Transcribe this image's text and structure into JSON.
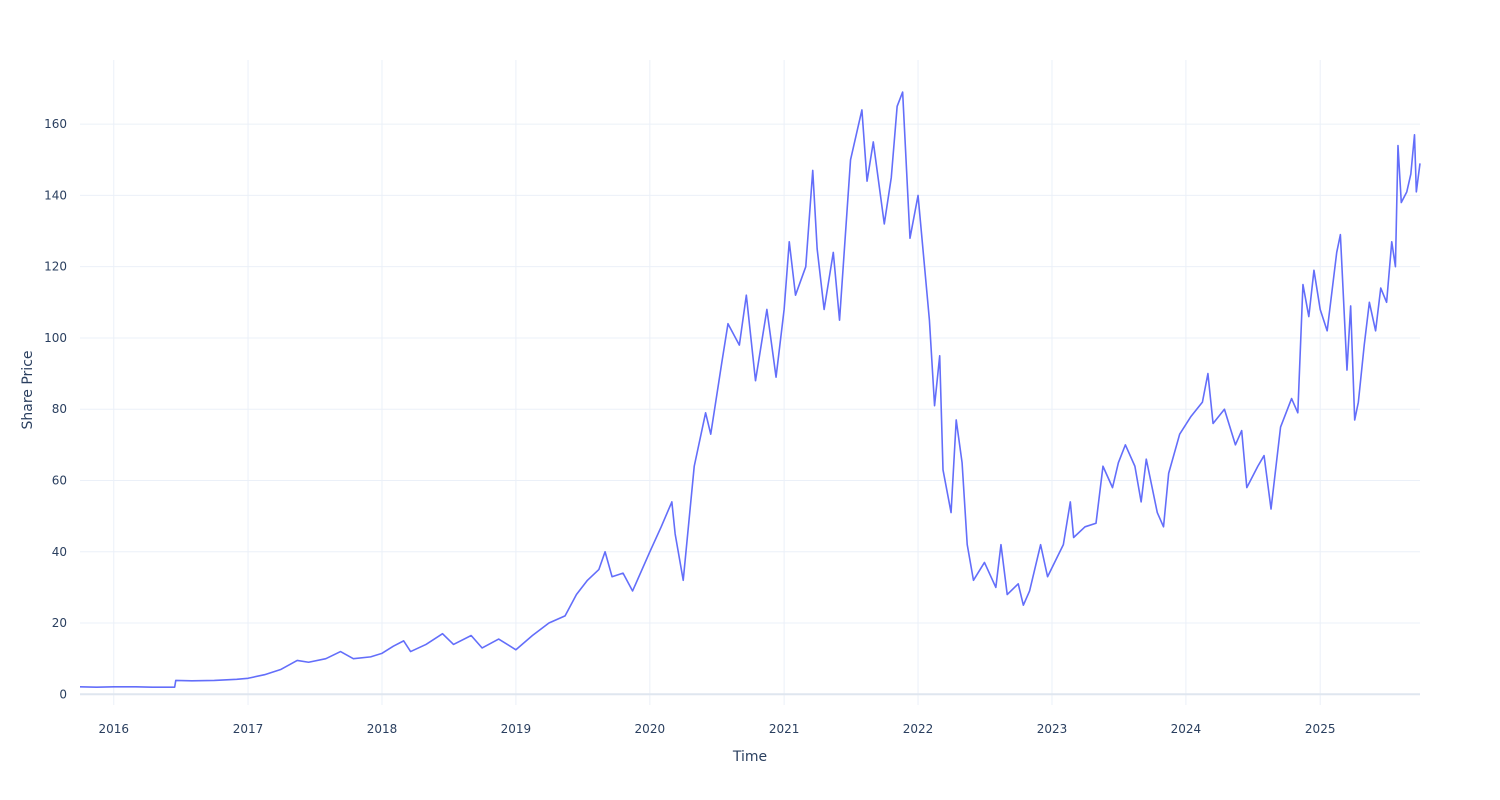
{
  "chart_data": {
    "type": "line",
    "title": "",
    "xlabel": "Time",
    "ylabel": "Share Price",
    "xlim": [
      "2015-10-01",
      "2025-09-30"
    ],
    "ylim": [
      -3,
      178
    ],
    "grid": true,
    "legend": "none",
    "line_color": "#636efa",
    "grid_color": "#ebf0f8",
    "text_color": "#2a3f5f",
    "x_ticks": [
      {
        "value": "2016-01-01",
        "label": "2016"
      },
      {
        "value": "2017-01-01",
        "label": "2017"
      },
      {
        "value": "2018-01-01",
        "label": "2018"
      },
      {
        "value": "2019-01-01",
        "label": "2019"
      },
      {
        "value": "2020-01-01",
        "label": "2020"
      },
      {
        "value": "2021-01-01",
        "label": "2021"
      },
      {
        "value": "2022-01-01",
        "label": "2022"
      },
      {
        "value": "2023-01-01",
        "label": "2023"
      },
      {
        "value": "2024-01-01",
        "label": "2024"
      },
      {
        "value": "2025-01-01",
        "label": "2025"
      }
    ],
    "y_ticks": [
      {
        "value": 0,
        "label": "0"
      },
      {
        "value": 20,
        "label": "20"
      },
      {
        "value": 40,
        "label": "40"
      },
      {
        "value": 60,
        "label": "60"
      },
      {
        "value": 80,
        "label": "80"
      },
      {
        "value": 100,
        "label": "100"
      },
      {
        "value": 120,
        "label": "120"
      },
      {
        "value": 140,
        "label": "140"
      },
      {
        "value": 160,
        "label": "160"
      }
    ],
    "series": [
      {
        "points": [
          [
            "2015-10-01",
            2.1
          ],
          [
            "2015-11-15",
            2.0
          ],
          [
            "2016-01-01",
            2.1
          ],
          [
            "2016-03-01",
            2.1
          ],
          [
            "2016-04-15",
            2.0
          ],
          [
            "2016-06-15",
            2.0
          ],
          [
            "2016-06-18",
            3.9
          ],
          [
            "2016-08-01",
            3.8
          ],
          [
            "2016-10-01",
            3.9
          ],
          [
            "2016-12-01",
            4.2
          ],
          [
            "2017-01-01",
            4.5
          ],
          [
            "2017-02-15",
            5.5
          ],
          [
            "2017-04-01",
            7.0
          ],
          [
            "2017-05-15",
            9.5
          ],
          [
            "2017-06-15",
            9.0
          ],
          [
            "2017-08-01",
            10.0
          ],
          [
            "2017-09-10",
            12.0
          ],
          [
            "2017-10-15",
            10.0
          ],
          [
            "2017-12-01",
            10.5
          ],
          [
            "2018-01-01",
            11.5
          ],
          [
            "2018-02-01",
            13.5
          ],
          [
            "2018-03-01",
            15.0
          ],
          [
            "2018-03-20",
            12.0
          ],
          [
            "2018-05-01",
            14.0
          ],
          [
            "2018-06-15",
            17.0
          ],
          [
            "2018-07-15",
            14.0
          ],
          [
            "2018-09-01",
            16.5
          ],
          [
            "2018-10-01",
            13.0
          ],
          [
            "2018-11-15",
            15.5
          ],
          [
            "2019-01-01",
            12.5
          ],
          [
            "2019-02-15",
            16.5
          ],
          [
            "2019-04-01",
            20.0
          ],
          [
            "2019-05-15",
            22.0
          ],
          [
            "2019-06-15",
            28.0
          ],
          [
            "2019-07-15",
            32.0
          ],
          [
            "2019-08-15",
            35.0
          ],
          [
            "2019-09-01",
            40.0
          ],
          [
            "2019-09-20",
            33.0
          ],
          [
            "2019-10-20",
            34.0
          ],
          [
            "2019-11-15",
            29.0
          ],
          [
            "2020-01-01",
            40.0
          ],
          [
            "2020-02-01",
            47.0
          ],
          [
            "2020-03-01",
            54.0
          ],
          [
            "2020-03-10",
            45.0
          ],
          [
            "2020-04-01",
            32.0
          ],
          [
            "2020-05-01",
            64.0
          ],
          [
            "2020-06-01",
            79.0
          ],
          [
            "2020-06-15",
            73.0
          ],
          [
            "2020-07-15",
            93.0
          ],
          [
            "2020-08-01",
            104.0
          ],
          [
            "2020-09-01",
            98.0
          ],
          [
            "2020-09-20",
            112.0
          ],
          [
            "2020-10-15",
            88.0
          ],
          [
            "2020-11-15",
            108.0
          ],
          [
            "2020-12-10",
            89.0
          ],
          [
            "2021-01-01",
            108.0
          ],
          [
            "2021-01-15",
            127.0
          ],
          [
            "2021-02-01",
            112.0
          ],
          [
            "2021-03-01",
            120.0
          ],
          [
            "2021-03-20",
            147.0
          ],
          [
            "2021-04-01",
            125.0
          ],
          [
            "2021-04-20",
            108.0
          ],
          [
            "2021-05-15",
            124.0
          ],
          [
            "2021-06-01",
            105.0
          ],
          [
            "2021-07-01",
            150.0
          ],
          [
            "2021-08-01",
            164.0
          ],
          [
            "2021-08-15",
            144.0
          ],
          [
            "2021-09-01",
            155.0
          ],
          [
            "2021-10-01",
            132.0
          ],
          [
            "2021-10-20",
            145.0
          ],
          [
            "2021-11-05",
            165.0
          ],
          [
            "2021-11-20",
            169.0
          ],
          [
            "2021-12-10",
            128.0
          ],
          [
            "2022-01-01",
            140.0
          ],
          [
            "2022-02-01",
            105.0
          ],
          [
            "2022-02-15",
            81.0
          ],
          [
            "2022-03-01",
            95.0
          ],
          [
            "2022-03-10",
            63.0
          ],
          [
            "2022-04-01",
            51.0
          ],
          [
            "2022-04-15",
            77.0
          ],
          [
            "2022-05-01",
            65.0
          ],
          [
            "2022-05-15",
            42.0
          ],
          [
            "2022-06-01",
            32.0
          ],
          [
            "2022-07-01",
            37.0
          ],
          [
            "2022-08-01",
            30.0
          ],
          [
            "2022-08-15",
            42.0
          ],
          [
            "2022-09-01",
            28.0
          ],
          [
            "2022-10-01",
            31.0
          ],
          [
            "2022-10-15",
            25.0
          ],
          [
            "2022-11-01",
            29.0
          ],
          [
            "2022-12-01",
            42.0
          ],
          [
            "2022-12-20",
            33.0
          ],
          [
            "2023-02-01",
            42.0
          ],
          [
            "2023-02-20",
            54.0
          ],
          [
            "2023-03-01",
            44.0
          ],
          [
            "2023-04-01",
            47.0
          ],
          [
            "2023-05-01",
            48.0
          ],
          [
            "2023-05-20",
            64.0
          ],
          [
            "2023-06-15",
            58.0
          ],
          [
            "2023-07-01",
            65.0
          ],
          [
            "2023-07-20",
            70.0
          ],
          [
            "2023-08-15",
            64.0
          ],
          [
            "2023-09-01",
            54.0
          ],
          [
            "2023-09-15",
            66.0
          ],
          [
            "2023-10-15",
            51.0
          ],
          [
            "2023-11-01",
            47.0
          ],
          [
            "2023-11-15",
            62.0
          ],
          [
            "2023-12-15",
            73.0
          ],
          [
            "2024-01-15",
            78.0
          ],
          [
            "2024-02-15",
            82.0
          ],
          [
            "2024-03-01",
            90.0
          ],
          [
            "2024-03-15",
            76.0
          ],
          [
            "2024-04-15",
            80.0
          ],
          [
            "2024-05-15",
            70.0
          ],
          [
            "2024-06-01",
            74.0
          ],
          [
            "2024-06-15",
            58.0
          ],
          [
            "2024-07-15",
            64.0
          ],
          [
            "2024-08-01",
            67.0
          ],
          [
            "2024-08-20",
            52.0
          ],
          [
            "2024-09-15",
            75.0
          ],
          [
            "2024-10-15",
            83.0
          ],
          [
            "2024-11-01",
            79.0
          ],
          [
            "2024-11-15",
            115.0
          ],
          [
            "2024-12-01",
            106.0
          ],
          [
            "2024-12-15",
            119.0
          ],
          [
            "2025-01-01",
            108.0
          ],
          [
            "2025-01-20",
            102.0
          ],
          [
            "2025-02-15",
            124.0
          ],
          [
            "2025-02-25",
            129.0
          ],
          [
            "2025-03-15",
            91.0
          ],
          [
            "2025-03-25",
            109.0
          ],
          [
            "2025-04-05",
            77.0
          ],
          [
            "2025-04-15",
            82.0
          ],
          [
            "2025-05-01",
            98.0
          ],
          [
            "2025-05-15",
            110.0
          ],
          [
            "2025-06-01",
            102.0
          ],
          [
            "2025-06-15",
            114.0
          ],
          [
            "2025-07-01",
            110.0
          ],
          [
            "2025-07-15",
            127.0
          ],
          [
            "2025-07-25",
            120.0
          ],
          [
            "2025-08-01",
            154.0
          ],
          [
            "2025-08-10",
            138.0
          ],
          [
            "2025-08-25",
            141.0
          ],
          [
            "2025-09-05",
            146.0
          ],
          [
            "2025-09-15",
            157.0
          ],
          [
            "2025-09-20",
            141.0
          ],
          [
            "2025-09-30",
            149.0
          ]
        ]
      }
    ]
  }
}
